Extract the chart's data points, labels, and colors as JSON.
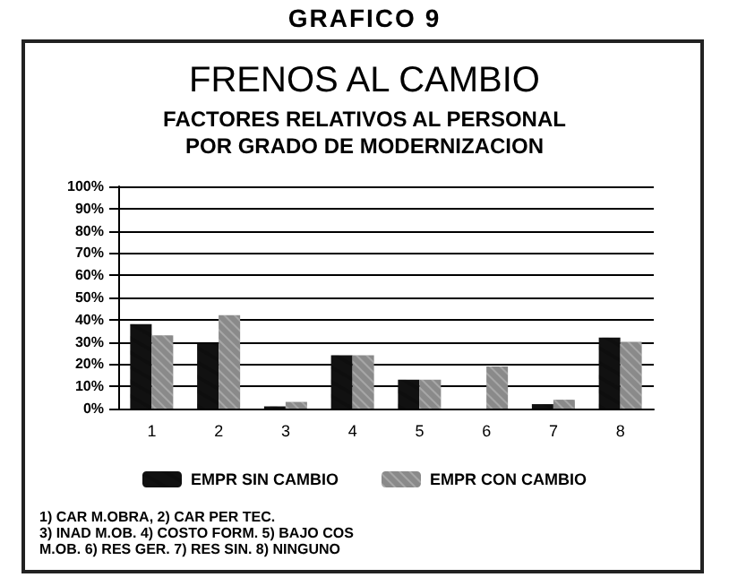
{
  "chart_data": {
    "type": "bar",
    "title": "FRENOS AL CAMBIO",
    "subtitle": "FACTORES RELATIVOS AL PERSONAL\nPOR GRADO DE MODERNIZACION",
    "annotations": [
      "GRAFICO 9",
      "1) CAR M.OBRA, 2) CAR PER TEC.\n3) INAD M.OB. 4) COSTO FORM. 5) BAJO COS\nM.OB. 6) RES GER. 7) RES SIN. 8) NINGUNO"
    ],
    "categories": [
      "1",
      "2",
      "3",
      "4",
      "5",
      "6",
      "7",
      "8"
    ],
    "series": [
      {
        "name": "EMPR SIN CAMBIO",
        "color": "#111111",
        "values": [
          38,
          29,
          1,
          24,
          13,
          0,
          2,
          32
        ]
      },
      {
        "name": "EMPR CON CAMBIO",
        "color": "#8a8a8a",
        "values": [
          33,
          42,
          3,
          24,
          13,
          19,
          4,
          30
        ]
      }
    ],
    "ylim": [
      0,
      100
    ],
    "yticks": [
      {
        "value": 0,
        "label": "0%"
      },
      {
        "value": 10,
        "label": "10%"
      },
      {
        "value": 20,
        "label": "20%"
      },
      {
        "value": 30,
        "label": "30%"
      },
      {
        "value": 40,
        "label": "40%"
      },
      {
        "value": 50,
        "label": "50%"
      },
      {
        "value": 60,
        "label": "60%"
      },
      {
        "value": 70,
        "label": "70%"
      },
      {
        "value": 80,
        "label": "80%"
      },
      {
        "value": 90,
        "label": "90%"
      },
      {
        "value": 100,
        "label": "100%"
      }
    ],
    "grid": "y",
    "legend": "bottom"
  }
}
